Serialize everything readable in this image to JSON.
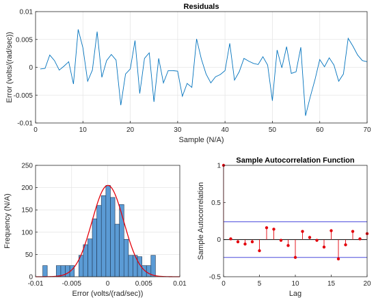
{
  "chart_data": [
    {
      "type": "line",
      "title": "Residuals",
      "xlabel": "Sample (N/A)",
      "ylabel": "Error (volts/(rad/sec))",
      "xlim": [
        0,
        70
      ],
      "ylim": [
        -0.01,
        0.01
      ],
      "xticks": [
        0,
        10,
        20,
        30,
        40,
        50,
        60,
        70
      ],
      "yticks": [
        -0.01,
        -0.005,
        0,
        0.005,
        0.01
      ],
      "xtick_labels": [
        "0",
        "10",
        "20",
        "30",
        "40",
        "50",
        "60",
        "70"
      ],
      "ytick_labels": [
        "-0.01",
        "-0.005",
        "0",
        "0.005",
        "0.01"
      ],
      "grid": true,
      "color": "#0072BD",
      "x": [
        1,
        2,
        3,
        4,
        5,
        6,
        7,
        8,
        9,
        10,
        11,
        12,
        13,
        14,
        15,
        16,
        17,
        18,
        19,
        20,
        21,
        22,
        23,
        24,
        25,
        26,
        27,
        28,
        29,
        30,
        31,
        32,
        33,
        34,
        35,
        36,
        37,
        38,
        39,
        40,
        41,
        42,
        43,
        44,
        45,
        46,
        47,
        48,
        49,
        50,
        51,
        52,
        53,
        54,
        55,
        56,
        57,
        58,
        59,
        60,
        61,
        62,
        63,
        64,
        65,
        66,
        67,
        68,
        69,
        70
      ],
      "y": [
        -0.0003,
        -0.0002,
        0.0022,
        0.0012,
        -0.0005,
        0.0002,
        0.001,
        -0.003,
        0.0068,
        0.0035,
        -0.0025,
        -0.0005,
        0.0064,
        -0.0018,
        0.0012,
        0.0023,
        0.0013,
        -0.0068,
        -0.0012,
        -0.0003,
        0.0048,
        -0.0047,
        0.0016,
        0.0026,
        -0.0062,
        0.0016,
        -0.0028,
        -0.0006,
        -0.0006,
        -0.0007,
        -0.0052,
        -0.0029,
        -0.0036,
        0.0051,
        0.0015,
        -0.0012,
        -0.0028,
        -0.0017,
        -0.0013,
        -0.0006,
        0.0043,
        -0.0023,
        -0.0008,
        0.0016,
        0.0011,
        0.0007,
        0.0005,
        0.0019,
        0.0004,
        -0.006,
        0.0031,
        -0.0001,
        0.0037,
        -0.0011,
        -0.0008,
        0.0036,
        -0.0087,
        -0.0053,
        -0.0022,
        0.0014,
        0.0001,
        0.0017,
        0.0004,
        -0.0025,
        -0.0012,
        0.0052,
        0.0038,
        0.0022,
        0.0012,
        0.001
      ]
    },
    {
      "type": "bar",
      "title": "",
      "xlabel": "Error (volts/(rad/sec))",
      "ylabel": "Frequency (N/A)",
      "xlim": [
        -0.01,
        0.01
      ],
      "ylim": [
        0,
        250
      ],
      "xticks": [
        -0.01,
        -0.005,
        0,
        0.005,
        0.01
      ],
      "yticks": [
        0,
        50,
        100,
        150,
        200,
        250
      ],
      "xtick_labels": [
        "-0.01",
        "-0.005",
        "0",
        "0.005",
        "0.01"
      ],
      "ytick_labels": [
        "0",
        "50",
        "100",
        "150",
        "200",
        "250"
      ],
      "grid": true,
      "bar_color": "#5B9BD5",
      "bin_width": 0.000625,
      "bin_starts": [
        -0.009,
        -0.00838,
        -0.00775,
        -0.00713,
        -0.0065,
        -0.00588,
        -0.00525,
        -0.00463,
        -0.004,
        -0.00338,
        -0.00275,
        -0.00213,
        -0.0015,
        -0.00088,
        -0.00025,
        0.00038,
        0.001,
        0.00163,
        0.00225,
        0.00288,
        0.0035,
        0.00413,
        0.00475,
        0.00538,
        0.006
      ],
      "values": [
        25,
        0,
        0,
        25,
        25,
        25,
        25,
        0,
        48,
        72,
        85,
        130,
        160,
        182,
        205,
        178,
        118,
        162,
        84,
        48,
        48,
        45,
        25,
        25,
        48
      ],
      "fit": {
        "type": "normal",
        "color": "#E3000B",
        "mean": 3e-05,
        "std": 0.0022,
        "peak": 205
      }
    },
    {
      "type": "stem",
      "title": "Sample Autocorrelation Function",
      "xlabel": "Lag",
      "ylabel": "Sample Autocorrelation",
      "xlim": [
        0,
        20
      ],
      "ylim": [
        -0.5,
        1
      ],
      "xticks": [
        0,
        5,
        10,
        15,
        20
      ],
      "yticks": [
        -0.5,
        0,
        0.5,
        1
      ],
      "xtick_labels": [
        "0",
        "5",
        "10",
        "15",
        "20"
      ],
      "ytick_labels": [
        "-0.5",
        "0",
        "0.5",
        "1"
      ],
      "grid": false,
      "color": "#E3000B",
      "x": [
        0,
        1,
        2,
        3,
        4,
        5,
        6,
        7,
        8,
        9,
        10,
        11,
        12,
        13,
        14,
        15,
        16,
        17,
        18,
        19,
        20
      ],
      "y": [
        1.0,
        0.01,
        -0.03,
        -0.06,
        -0.03,
        -0.15,
        0.16,
        0.14,
        -0.01,
        -0.08,
        -0.24,
        0.11,
        0.03,
        -0.01,
        -0.1,
        0.12,
        -0.26,
        -0.07,
        0.11,
        0.01,
        0.08
      ],
      "confidence_bounds": [
        0.24,
        -0.24
      ],
      "bound_color": "#4A4ADB"
    }
  ]
}
